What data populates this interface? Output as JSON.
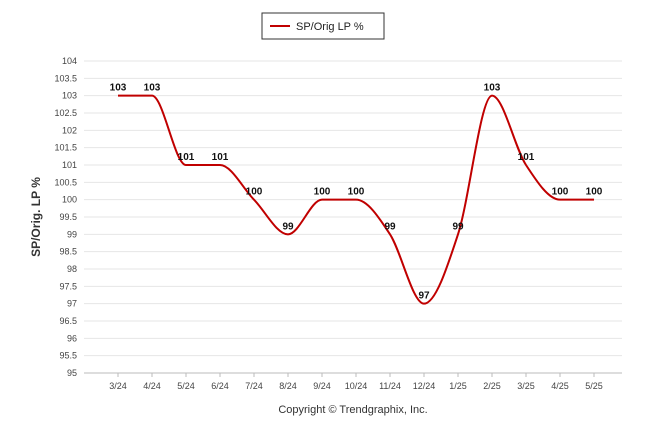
{
  "chart_data": {
    "type": "line",
    "categories": [
      "3/24",
      "4/24",
      "5/24",
      "6/24",
      "7/24",
      "8/24",
      "9/24",
      "10/24",
      "11/24",
      "12/24",
      "1/25",
      "2/25",
      "3/25",
      "4/25",
      "5/25"
    ],
    "series": [
      {
        "name": "SP/Orig LP %",
        "values": [
          103,
          103,
          101,
          101,
          100,
          99,
          100,
          100,
          99,
          97,
          99,
          103,
          101,
          100,
          100
        ],
        "color": "#c00000"
      }
    ],
    "data_labels": [
      "103",
      "103",
      "101",
      "101",
      "100",
      "99",
      "100",
      "100",
      "99",
      "97",
      "99",
      "103",
      "101",
      "100",
      "100"
    ],
    "ylabel": "SP/Orig. LP %",
    "xlabel": "",
    "ylim": [
      95,
      104
    ],
    "yticks": [
      "95",
      "95.5",
      "96",
      "96.5",
      "97",
      "97.5",
      "98",
      "98.5",
      "99",
      "99.5",
      "100",
      "100.5",
      "101",
      "101.5",
      "102",
      "102.5",
      "103",
      "103.5",
      "104"
    ],
    "grid": true,
    "legend_position": "top-center"
  },
  "legend": {
    "label": "SP/Orig LP %"
  },
  "footer": {
    "copyright": "Copyright © Trendgraphix, Inc."
  }
}
